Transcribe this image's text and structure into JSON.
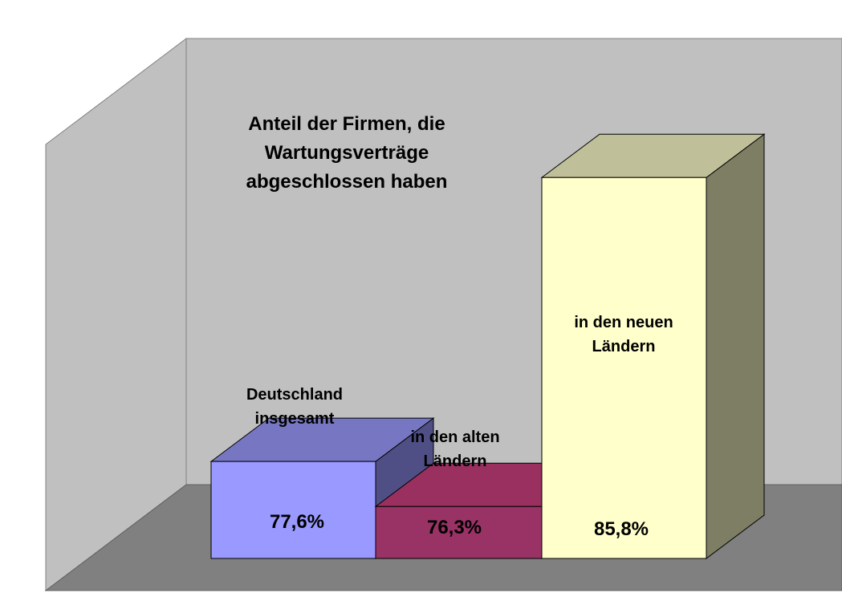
{
  "chart_data": {
    "type": "bar",
    "title_lines": [
      "Anteil der Firmen, die",
      "Wartungsverträge",
      "abgeschlossen haben"
    ],
    "categories": [
      [
        "Deutschland",
        "insgesamt"
      ],
      [
        "in den alten",
        "Ländern"
      ],
      [
        "in den neuen",
        "Ländern"
      ]
    ],
    "values": [
      77.6,
      76.3,
      85.8
    ],
    "value_labels": [
      "77,6%",
      "76,3%",
      "85,8%"
    ],
    "ylim": [
      74.8,
      90
    ],
    "colors": {
      "bar_front": [
        "#9999ff",
        "#993366",
        "#ffffcc"
      ],
      "bar_top": [
        "#7676c2",
        "#99305f",
        "#bfbf99"
      ],
      "bar_side": [
        "#4f4f85",
        "#6c2348",
        "#7e7e64"
      ],
      "back_wall": "#c0c0c0",
      "side_wall": "#c0c0c0",
      "floor": "#808080"
    }
  }
}
